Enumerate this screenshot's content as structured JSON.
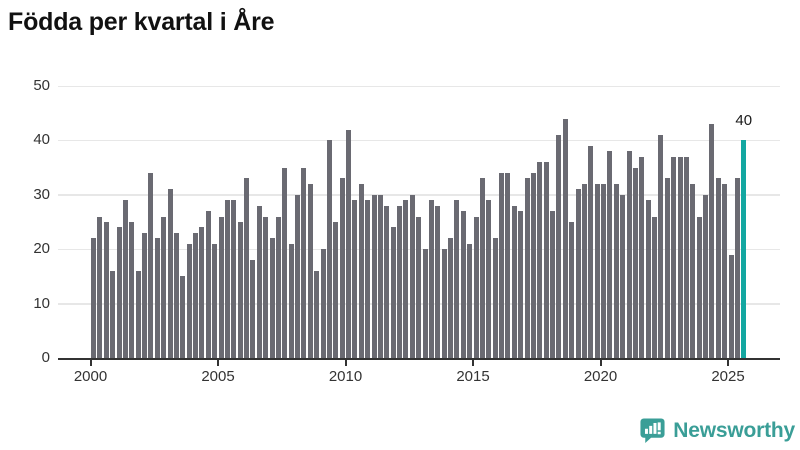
{
  "title": "Födda per kvartal i Åre",
  "chart_data": {
    "type": "bar",
    "title": "Födda per kvartal i Åre",
    "x_unit": "quarter",
    "x_range_implied": "2000Q1–2025Q3",
    "x_tick_labels": [
      "2000",
      "2005",
      "2010",
      "2015",
      "2020",
      "2025"
    ],
    "y_tick_labels": [
      "0",
      "10",
      "20",
      "30",
      "40",
      "50"
    ],
    "ylim": [
      0,
      50
    ],
    "grid": "horizontal",
    "legend": "none",
    "values": [
      22,
      26,
      25,
      16,
      24,
      29,
      25,
      16,
      23,
      34,
      22,
      26,
      31,
      23,
      15,
      21,
      23,
      24,
      27,
      21,
      26,
      29,
      29,
      25,
      33,
      18,
      28,
      26,
      22,
      26,
      35,
      21,
      30,
      35,
      32,
      16,
      20,
      40,
      25,
      33,
      42,
      29,
      32,
      29,
      30,
      30,
      28,
      24,
      28,
      29,
      30,
      26,
      20,
      29,
      28,
      20,
      22,
      29,
      27,
      21,
      26,
      33,
      29,
      22,
      34,
      34,
      28,
      27,
      33,
      34,
      36,
      36,
      27,
      41,
      44,
      25,
      31,
      32,
      39,
      32,
      32,
      38,
      32,
      30,
      38,
      35,
      37,
      29,
      26,
      41,
      33,
      37,
      37,
      37,
      32,
      26,
      30,
      43,
      33,
      32,
      19,
      33,
      40
    ],
    "highlight": {
      "index": 102,
      "value": 40,
      "label": "40"
    }
  },
  "colors": {
    "bar": "#6a6a72",
    "highlight": "#13a7a1",
    "gridline": "#e7e7e7",
    "axis": "#333333",
    "tick_text": "#333333",
    "annotation_text": "#1a1a1a",
    "brand": "#3a9e97"
  },
  "footer": {
    "brand": "Newsworthy",
    "logo_icon": "speech-bubble-bar-chart-icon"
  }
}
